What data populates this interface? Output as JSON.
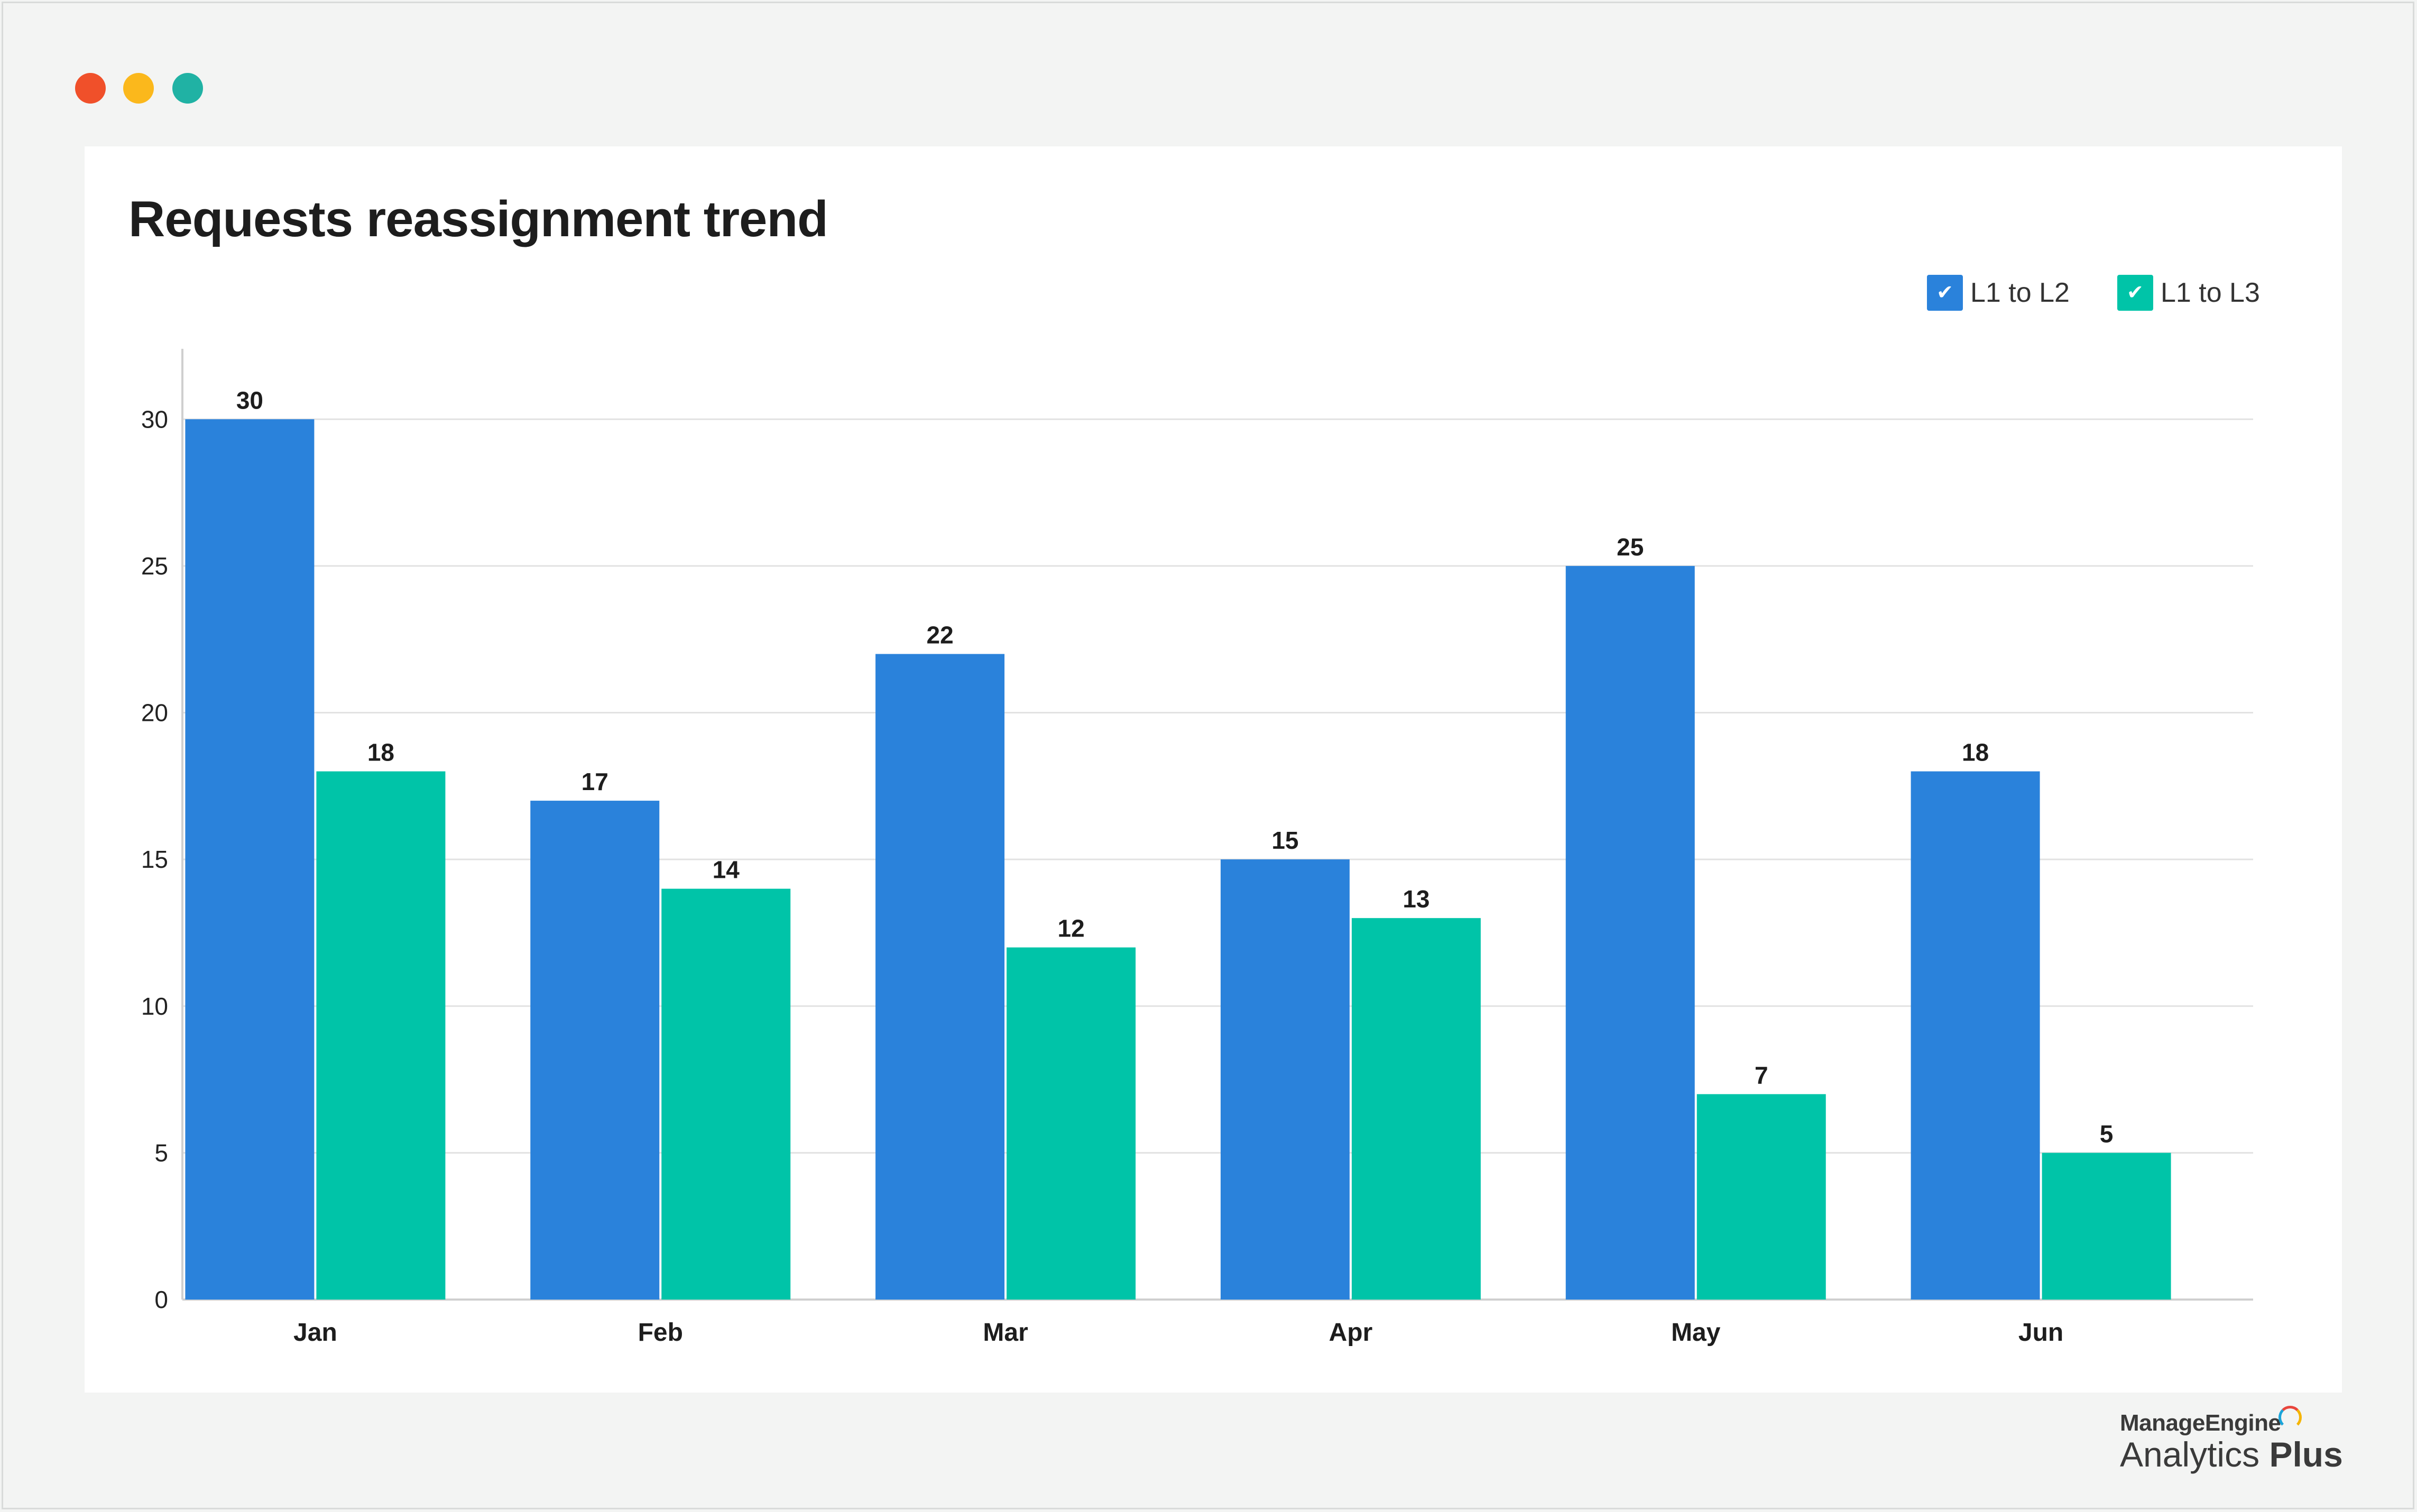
{
  "window": {
    "controls": [
      "close",
      "minimize",
      "maximize"
    ],
    "colors": {
      "close": "#f0502a",
      "minimize": "#fbb81c",
      "maximize": "#20b2a4"
    }
  },
  "chart_data": {
    "type": "bar",
    "title": "Requests reassignment trend",
    "categories": [
      "Jan",
      "Feb",
      "Mar",
      "Apr",
      "May",
      "Jun"
    ],
    "series": [
      {
        "name": "L1 to L2",
        "color": "#2a82db",
        "values": [
          30,
          17,
          22,
          15,
          25,
          18
        ]
      },
      {
        "name": "L1 to L3",
        "color": "#00c4a8",
        "values": [
          18,
          14,
          12,
          13,
          7,
          5
        ]
      }
    ],
    "ylim": [
      0,
      32.4
    ],
    "yticks": [
      0,
      5,
      10,
      15,
      20,
      25,
      30
    ],
    "grid": true,
    "legend": "top-right",
    "data_labels": true
  },
  "brand": {
    "company": "ManageEngine",
    "product_light": "Analytics",
    "product_bold": "Plus"
  }
}
